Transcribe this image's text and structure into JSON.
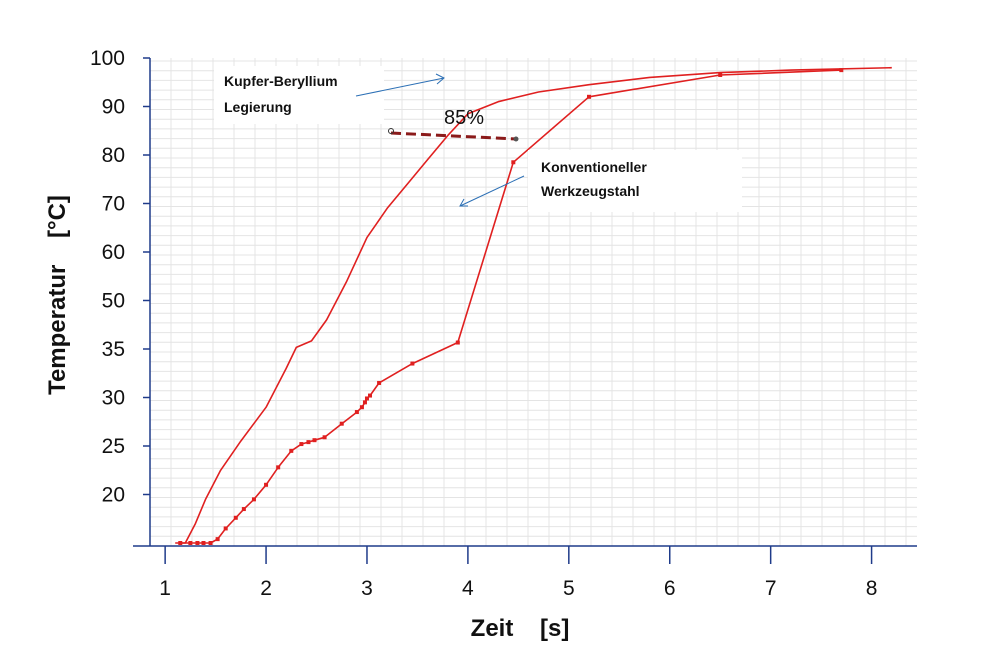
{
  "chart_data": {
    "type": "line",
    "title": "",
    "xlabel": "Zeit    [s]",
    "ylabel": "Temperatur    [°C]",
    "x_ticks": [
      "1",
      "2",
      "3",
      "4",
      "5",
      "6",
      "7",
      "8"
    ],
    "y_ticks": [
      "20",
      "25",
      "30",
      "35",
      "50",
      "60",
      "70",
      "80",
      "90",
      "100"
    ],
    "xlim": [
      0.85,
      8.45
    ],
    "grid": true,
    "colors": {
      "series": "#e02020",
      "axis": "#1f3b8a",
      "grid": "#e4e4e4",
      "arrow": "#2b6fb5",
      "dashed": "#8b1a1a"
    },
    "series": [
      {
        "name": "Kupfer-Beryllium Legierung",
        "markers": false,
        "points": [
          [
            1.1,
            14
          ],
          [
            1.2,
            15
          ],
          [
            1.3,
            17
          ],
          [
            1.4,
            19.5
          ],
          [
            1.55,
            22.5
          ],
          [
            1.75,
            25.5
          ],
          [
            2.0,
            29
          ],
          [
            2.2,
            33
          ],
          [
            2.3,
            35.5
          ],
          [
            2.45,
            37.5
          ],
          [
            2.6,
            44
          ],
          [
            2.8,
            54
          ],
          [
            3.0,
            63
          ],
          [
            3.1,
            66
          ],
          [
            3.2,
            69
          ],
          [
            3.4,
            74
          ],
          [
            3.6,
            79
          ],
          [
            3.8,
            84
          ],
          [
            4.0,
            88.5
          ],
          [
            4.3,
            91
          ],
          [
            4.7,
            93
          ],
          [
            5.2,
            94.5
          ],
          [
            5.8,
            96
          ],
          [
            6.5,
            97
          ],
          [
            7.2,
            97.5
          ],
          [
            8.2,
            98
          ]
        ]
      },
      {
        "name": "Konventioneller Werkzeugstahl",
        "markers": true,
        "points": [
          [
            1.15,
            13
          ],
          [
            1.25,
            13.2
          ],
          [
            1.32,
            13.6
          ],
          [
            1.38,
            14.0
          ],
          [
            1.45,
            14.6
          ],
          [
            1.52,
            15.4
          ],
          [
            1.6,
            16.5
          ],
          [
            1.7,
            17.6
          ],
          [
            1.78,
            18.5
          ],
          [
            1.88,
            19.5
          ],
          [
            2.0,
            21.0
          ],
          [
            2.12,
            22.8
          ],
          [
            2.25,
            24.5
          ],
          [
            2.35,
            25.2
          ],
          [
            2.42,
            25.4
          ],
          [
            2.48,
            25.6
          ],
          [
            2.58,
            25.9
          ],
          [
            2.75,
            27.3
          ],
          [
            2.9,
            28.5
          ],
          [
            2.95,
            29.0
          ],
          [
            2.98,
            29.5
          ],
          [
            3.0,
            29.9
          ],
          [
            3.03,
            30.2
          ],
          [
            3.12,
            31.5
          ],
          [
            3.45,
            33.5
          ],
          [
            3.9,
            37.0
          ],
          [
            4.45,
            78.5
          ],
          [
            5.2,
            92
          ],
          [
            6.5,
            96.5
          ],
          [
            7.7,
            97.5
          ]
        ]
      }
    ],
    "annotations": [
      {
        "text": "Kupfer-Beryllium",
        "line": 1
      },
      {
        "text": "Legierung",
        "line": 2
      },
      {
        "text": "Konventioneller",
        "line": 1
      },
      {
        "text": "Werkzeugstahl",
        "line": 2
      },
      {
        "text": "85%"
      }
    ]
  }
}
